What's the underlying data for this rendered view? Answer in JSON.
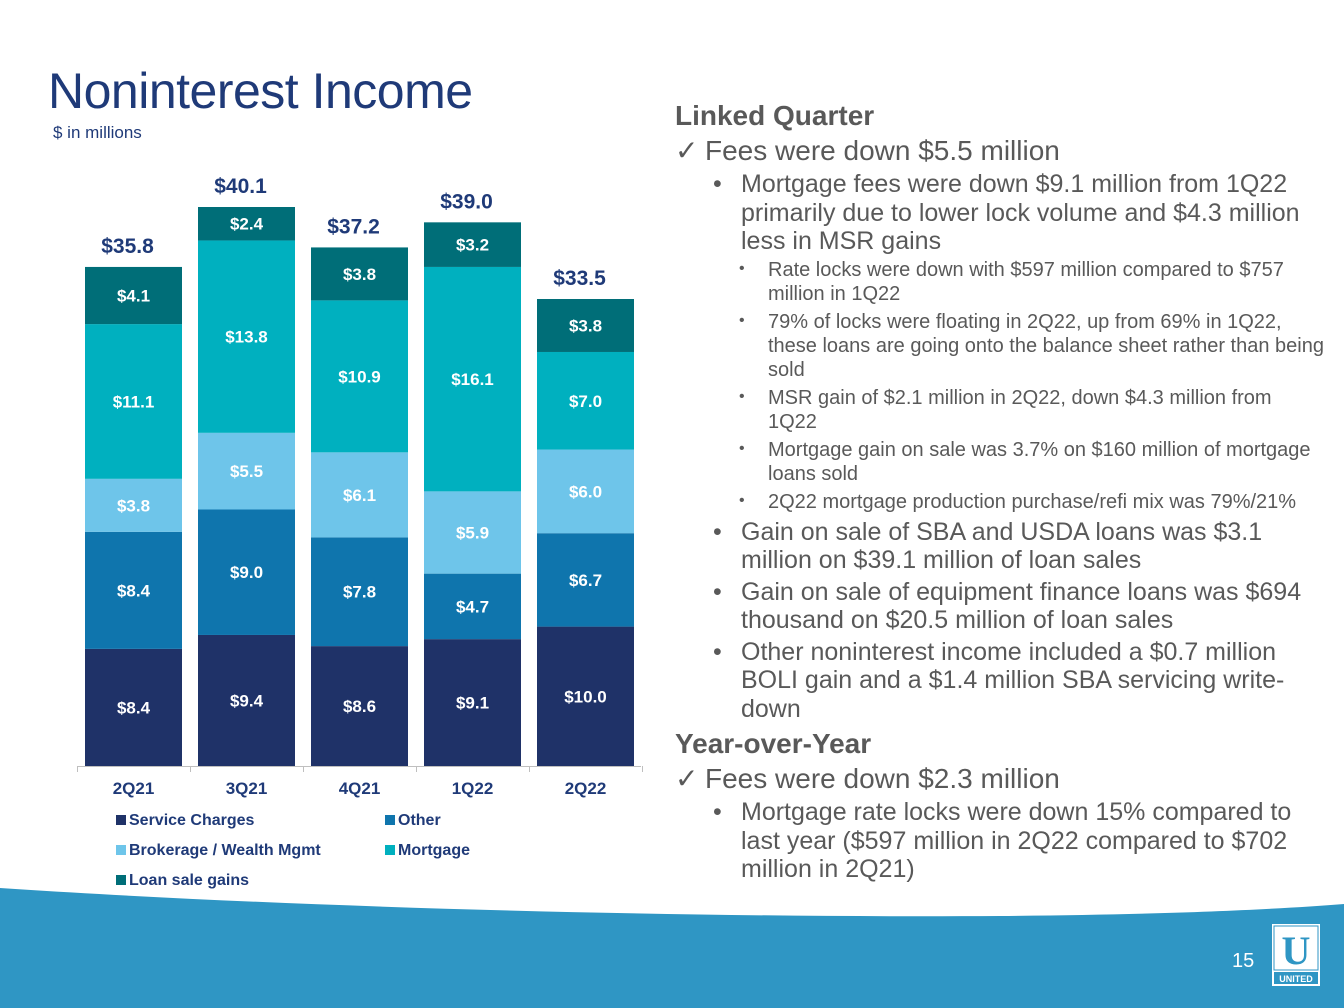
{
  "title": "Noninterest Income",
  "subtitle": "$ in millions",
  "colors": {
    "title": "#1f3a78",
    "service_charges": "#1f3268",
    "other": "#0f75ad",
    "brokerage": "#6ec5ea",
    "mortgage": "#00b0bf",
    "loan_sale_gains": "#006e78",
    "footer": "#2f96c4"
  },
  "chart_data": {
    "type": "bar",
    "stacked": true,
    "categories": [
      "2Q21",
      "3Q21",
      "4Q21",
      "1Q22",
      "2Q22"
    ],
    "series": [
      {
        "name": "Service Charges",
        "values": [
          8.4,
          9.4,
          8.6,
          9.1,
          10.0
        ],
        "labels": [
          "$8.4",
          "$9.4",
          "$8.6",
          "$9.1",
          "$10.0"
        ],
        "color": "#1f3268"
      },
      {
        "name": "Other",
        "values": [
          8.4,
          9.0,
          7.8,
          4.7,
          6.7
        ],
        "labels": [
          "$8.4",
          "$9.0",
          "$7.8",
          "$4.7",
          "$6.7"
        ],
        "color": "#0f75ad"
      },
      {
        "name": "Brokerage / Wealth Mgmt",
        "values": [
          3.8,
          5.5,
          6.1,
          5.9,
          6.0
        ],
        "labels": [
          "$3.8",
          "$5.5",
          "$6.1",
          "$5.9",
          "$6.0"
        ],
        "color": "#6ec5ea"
      },
      {
        "name": "Mortgage",
        "values": [
          11.1,
          13.8,
          10.9,
          16.1,
          7.0
        ],
        "labels": [
          "$11.1",
          "$13.8",
          "$10.9",
          "$16.1",
          "$7.0"
        ],
        "color": "#00b0bf"
      },
      {
        "name": "Loan sale gains",
        "values": [
          4.1,
          2.4,
          3.8,
          3.2,
          3.8
        ],
        "labels": [
          "$4.1",
          "$2.4",
          "$3.8",
          "$3.2",
          "$3.8"
        ],
        "color": "#006e78"
      }
    ],
    "totals": [
      35.8,
      40.1,
      37.2,
      39.0,
      33.5
    ],
    "total_labels": [
      "$35.8",
      "$40.1",
      "$37.2",
      "$39.0",
      "$33.5"
    ],
    "ylim": [
      0,
      40.1
    ],
    "legend_position": "bottom",
    "grid": false
  },
  "legend": [
    {
      "label": "Service Charges",
      "color": "#1f3268"
    },
    {
      "label": "Other",
      "color": "#0f75ad"
    },
    {
      "label": "Brokerage / Wealth Mgmt",
      "color": "#6ec5ea"
    },
    {
      "label": "Mortgage",
      "color": "#00b0bf"
    },
    {
      "label": "Loan sale gains",
      "color": "#006e78"
    }
  ],
  "commentary": {
    "linked_heading": "Linked Quarter",
    "linked_check": "Fees were down $5.5 million",
    "mortgage_fees": "Mortgage fees were down $9.1 million from 1Q22 primarily due to lower lock volume and $4.3 million less in MSR gains",
    "sub_bullets": [
      "Rate locks were down with $597 million compared to $757 million in 1Q22",
      "79% of locks were floating in 2Q22, up from 69% in 1Q22, these loans are going onto the balance sheet rather than being sold",
      "MSR gain of $2.1 million in 2Q22, down $4.3 million from 1Q22",
      "Mortgage gain on sale was 3.7% on $160 million of mortgage loans sold",
      "2Q22 mortgage production purchase/refi mix was 79%/21%"
    ],
    "sba_usda": "Gain on sale of SBA and USDA loans was $3.1 million on $39.1 million of loan sales",
    "equipment": "Gain on sale of equipment finance loans was $694 thousand on $20.5 million of loan sales",
    "other_income": "Other noninterest income included a $0.7 million BOLI gain and a $1.4 million SBA servicing write-down",
    "yoy_heading": "Year-over-Year",
    "yoy_check": "Fees were down $2.3 million",
    "yoy_bullet": "Mortgage rate locks were down 15% compared to last year ($597 million in 2Q22 compared to $702 million in 2Q21)"
  },
  "check_glyph": "✓",
  "bullet_glyph": "•",
  "page_number": "15",
  "logo": {
    "letter": "U",
    "text": "UNITED"
  }
}
